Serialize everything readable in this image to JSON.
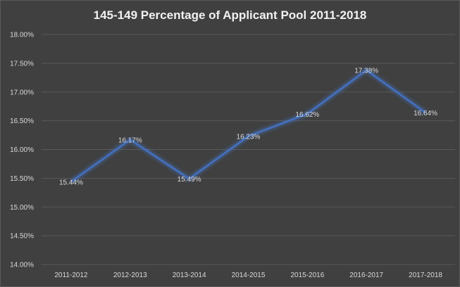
{
  "chart_data": {
    "type": "line",
    "title": "145-149 Percentage of Applicant Pool 2011-2018",
    "categories": [
      "2011-2012",
      "2012-2013",
      "2013-2014",
      "2014-2015",
      "2015-2016",
      "2016-2017",
      "2017-2018"
    ],
    "series": [
      {
        "values": [
          15.44,
          16.17,
          15.49,
          16.23,
          16.62,
          17.38,
          16.64
        ],
        "labels": [
          "15.44%",
          "16.17%",
          "15.49%",
          "16.23%",
          "16.62%",
          "17.38%",
          "16.64%"
        ],
        "color": "#4472c4"
      }
    ],
    "ylim": [
      14.0,
      18.0
    ],
    "yticks": [
      "14.00%",
      "14.50%",
      "15.00%",
      "15.50%",
      "16.00%",
      "16.50%",
      "17.00%",
      "17.50%",
      "18.00%"
    ],
    "ytick_values": [
      14.0,
      14.5,
      15.0,
      15.5,
      16.0,
      16.5,
      17.0,
      17.5,
      18.0
    ],
    "grid": true,
    "legend": "none",
    "colors": {
      "background": "#404040",
      "gridline": "#595959",
      "text": "#d9d9d9"
    }
  }
}
